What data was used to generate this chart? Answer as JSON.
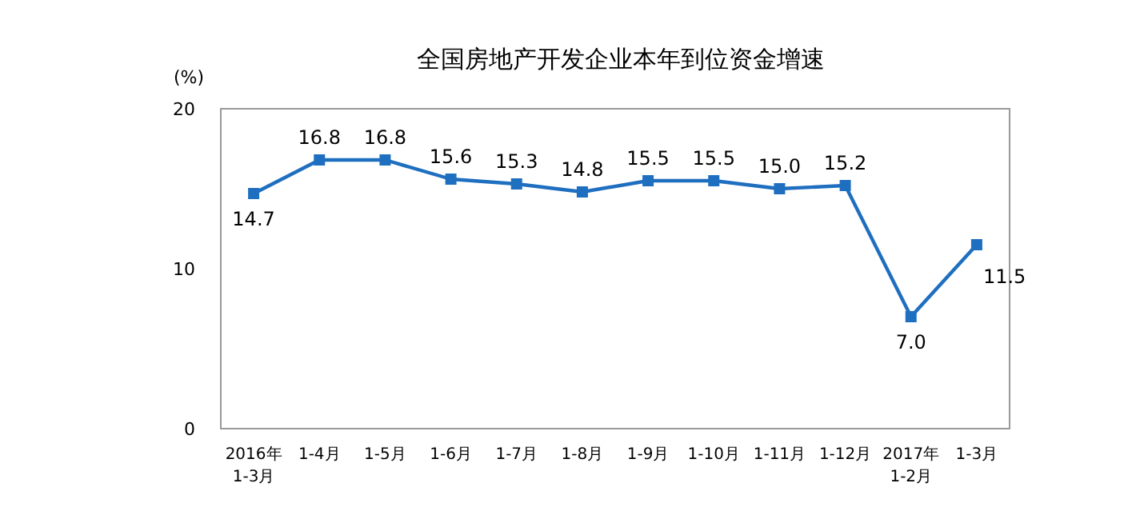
{
  "chart_data": {
    "type": "line",
    "title": "全国房地产开发企业本年到位资金增速",
    "ylabel": "(%)",
    "categories": [
      "2016年\n1-3月",
      "1-4月",
      "1-5月",
      "1-6月",
      "1-7月",
      "1-8月",
      "1-9月",
      "1-10月",
      "1-11月",
      "1-12月",
      "2017年\n1-2月",
      "1-3月"
    ],
    "values": [
      14.7,
      16.8,
      16.8,
      15.6,
      15.3,
      14.8,
      15.5,
      15.5,
      15.0,
      15.2,
      7.0,
      11.5
    ],
    "color": "#1f6fc0",
    "ylim": [
      0,
      20
    ],
    "yticks": [
      0,
      10,
      20
    ],
    "marker": "square",
    "value_labels": [
      "14.7",
      "16.8",
      "16.8",
      "15.6",
      "15.3",
      "14.8",
      "15.5",
      "15.5",
      "15.0",
      "15.2",
      "7.0",
      "11.5"
    ]
  }
}
